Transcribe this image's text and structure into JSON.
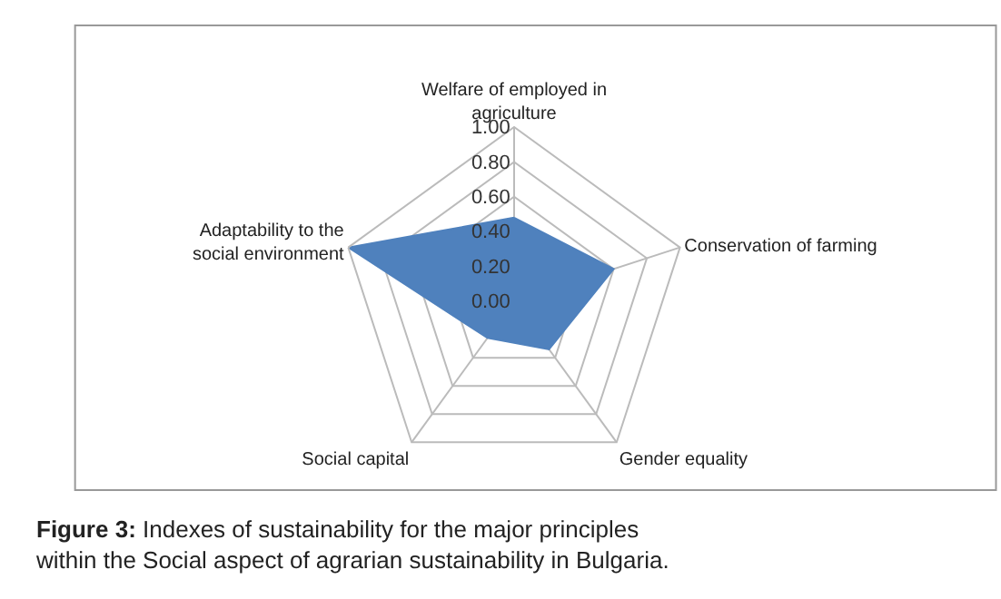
{
  "chart_data": {
    "type": "radar",
    "categories": [
      "Welfare of employed in agriculture",
      "Conservation of farming",
      "Gender equality",
      "Social capital",
      "Adaptability to the social environment"
    ],
    "series": [
      {
        "color": "#4f81bd",
        "values": [
          0.48,
          0.6,
          0.34,
          0.26,
          1.0
        ]
      }
    ],
    "ylim": [
      0,
      1
    ],
    "yticks": [
      {
        "value": 0,
        "label": "0.00"
      },
      {
        "value": 0.2,
        "label": "0.20"
      },
      {
        "value": 0.4,
        "label": "0.40"
      },
      {
        "value": 0.6,
        "label": "0.60"
      },
      {
        "value": 0.8,
        "label": "0.80"
      },
      {
        "value": 1,
        "label": "1.00"
      }
    ],
    "grid": true,
    "annotations": [
      "Figure 3: Indexes of sustainability for the major principles within the Social aspect of agrarian sustainability in Bulgaria."
    ]
  }
}
